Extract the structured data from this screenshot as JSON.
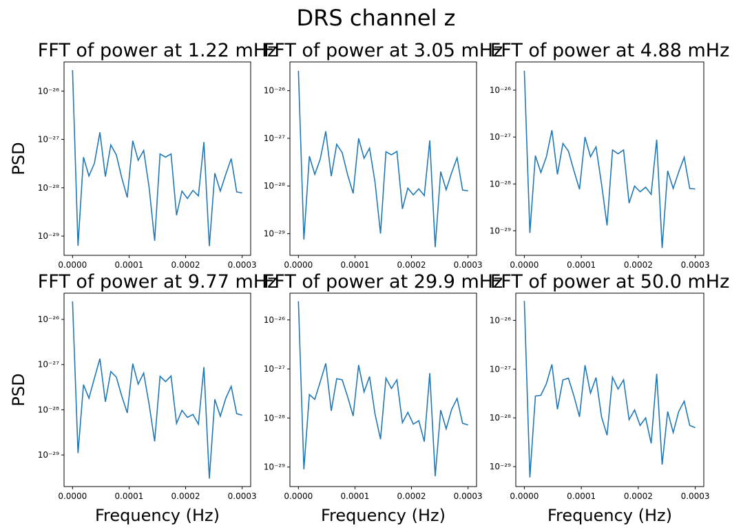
{
  "title": "DRS channel z",
  "chart_data": [
    {
      "type": "line",
      "title": "FFT of power at 1.22 mHz",
      "ylabel": "PSD",
      "color": "#1f77b4",
      "ylog": true,
      "x": [
        0,
        9.7e-06,
        1.94e-05,
        2.9e-05,
        3.87e-05,
        4.84e-05,
        5.81e-05,
        6.77e-05,
        7.74e-05,
        8.71e-05,
        9.68e-05,
        0.0001065,
        0.0001161,
        0.0001258,
        0.0001355,
        0.0001452,
        0.0001548,
        0.0001645,
        0.0001742,
        0.0001839,
        0.0001935,
        0.0002032,
        0.0002129,
        0.0002226,
        0.0002323,
        0.0002419,
        0.0002516,
        0.0002613,
        0.000271,
        0.0002806,
        0.0002903,
        0.0003
      ],
      "values": [
        2.7e-26,
        6.3e-30,
        4.3e-28,
        1.75e-28,
        3.2e-28,
        1.4e-27,
        1.7e-28,
        7.7e-28,
        4.8e-28,
        1.6e-28,
        6.3e-29,
        9.4e-28,
        3.7e-28,
        5.9e-28,
        1e-28,
        8e-30,
        5e-28,
        4.3e-28,
        5e-28,
        2.7e-29,
        8.5e-29,
        6e-29,
        8.8e-29,
        6.8e-29,
        8.8e-28,
        6.2e-30,
        2e-28,
        8.5e-29,
        1.9e-28,
        4e-28,
        8.2e-29,
        7.8e-29
      ],
      "xlim": [
        -1.5e-05,
        0.000315
      ],
      "ylim": [
        4e-30,
        4e-26
      ],
      "xticks": [
        {
          "value": 0,
          "label": "0.0000"
        },
        0.0001,
        0.0002,
        0.0003
      ],
      "yticks": [
        {
          "value": 1e-29,
          "label": "10⁻²⁹"
        },
        {
          "value": 1e-28,
          "label": "10⁻²⁸"
        },
        {
          "value": 1e-27,
          "label": "10⁻²⁷"
        },
        {
          "value": 1e-26,
          "label": "10⁻²⁶"
        }
      ]
    },
    {
      "type": "line",
      "title": "FFT of power at 3.05 mHz",
      "color": "#1f77b4",
      "ylog": true,
      "x": [
        0,
        9.7e-06,
        1.94e-05,
        2.9e-05,
        3.87e-05,
        4.84e-05,
        5.81e-05,
        6.77e-05,
        7.74e-05,
        8.71e-05,
        9.68e-05,
        0.0001065,
        0.0001161,
        0.0001258,
        0.0001355,
        0.0001452,
        0.0001548,
        0.0001645,
        0.0001742,
        0.0001839,
        0.0001935,
        0.0002032,
        0.0002129,
        0.0002226,
        0.0002323,
        0.0002419,
        0.0002516,
        0.0002613,
        0.000271,
        0.0002806,
        0.0002903,
        0.0003
      ],
      "values": [
        2.6e-26,
        7.5e-30,
        4.2e-28,
        1.75e-28,
        3.7e-28,
        1.4e-27,
        1.6e-28,
        7.5e-28,
        5e-28,
        1.7e-28,
        7e-29,
        1e-27,
        3.8e-28,
        6.2e-28,
        1.2e-28,
        1e-29,
        5.2e-28,
        4.5e-28,
        5.3e-28,
        3.3e-29,
        9e-29,
        6.5e-29,
        8.7e-29,
        6.3e-29,
        9e-28,
        5.2e-30,
        2e-28,
        8.3e-29,
        1.9e-28,
        3.9e-28,
        8.2e-29,
        7.9e-29
      ],
      "xlim": [
        -1.5e-05,
        0.000315
      ],
      "ylim": [
        3.5e-30,
        4e-26
      ],
      "xticks": [
        {
          "value": 0,
          "label": "0.0000"
        },
        0.0001,
        0.0002,
        0.0003
      ],
      "yticks": [
        {
          "value": 1e-29,
          "label": "10⁻²⁹"
        },
        {
          "value": 1e-28,
          "label": "10⁻²⁸"
        },
        {
          "value": 1e-27,
          "label": "10⁻²⁷"
        },
        {
          "value": 1e-26,
          "label": "10⁻²⁶"
        }
      ]
    },
    {
      "type": "line",
      "title": "FFT of power at 4.88 mHz",
      "color": "#1f77b4",
      "ylog": true,
      "x": [
        0,
        9.7e-06,
        1.94e-05,
        2.9e-05,
        3.87e-05,
        4.84e-05,
        5.81e-05,
        6.77e-05,
        7.74e-05,
        8.71e-05,
        9.68e-05,
        0.0001065,
        0.0001161,
        0.0001258,
        0.0001355,
        0.0001452,
        0.0001548,
        0.0001645,
        0.0001742,
        0.0001839,
        0.0001935,
        0.0002032,
        0.0002129,
        0.0002226,
        0.0002323,
        0.0002419,
        0.0002516,
        0.0002613,
        0.000271,
        0.0002806,
        0.0002903,
        0.0003
      ],
      "values": [
        2.6e-26,
        9e-30,
        4e-28,
        1.75e-28,
        3.8e-28,
        1.4e-27,
        1.6e-28,
        7.3e-28,
        5e-28,
        1.9e-28,
        7.7e-29,
        1e-27,
        3.8e-28,
        6.2e-28,
        1e-28,
        1.3e-29,
        5.3e-28,
        4.4e-28,
        5.3e-28,
        3.9e-29,
        9e-29,
        6.8e-29,
        8.5e-29,
        6e-29,
        8.8e-28,
        4.3e-30,
        1.9e-28,
        8e-29,
        1.8e-28,
        3.7e-28,
        8e-29,
        7.8e-29
      ],
      "xlim": [
        -1.5e-05,
        0.000315
      ],
      "ylim": [
        3e-30,
        4e-26
      ],
      "xticks": [
        {
          "value": 0,
          "label": "0.0000"
        },
        0.0001,
        0.0002,
        0.0003
      ],
      "yticks": [
        {
          "value": 1e-29,
          "label": "10⁻²⁹"
        },
        {
          "value": 1e-28,
          "label": "10⁻²⁸"
        },
        {
          "value": 1e-27,
          "label": "10⁻²⁷"
        },
        {
          "value": 1e-26,
          "label": "10⁻²⁶"
        }
      ]
    },
    {
      "type": "line",
      "title": "FFT of power at 9.77 mHz",
      "ylabel": "PSD",
      "xlabel": "Frequency (Hz)",
      "color": "#1f77b4",
      "ylog": true,
      "x": [
        0,
        9.7e-06,
        1.94e-05,
        2.9e-05,
        3.87e-05,
        4.84e-05,
        5.81e-05,
        6.77e-05,
        7.74e-05,
        8.71e-05,
        9.68e-05,
        0.0001065,
        0.0001161,
        0.0001258,
        0.0001355,
        0.0001452,
        0.0001548,
        0.0001645,
        0.0001742,
        0.0001839,
        0.0001935,
        0.0002032,
        0.0002129,
        0.0002226,
        0.0002323,
        0.0002419,
        0.0002516,
        0.0002613,
        0.000271,
        0.0002806,
        0.0002903,
        0.0003
      ],
      "values": [
        2.5e-26,
        1.1e-29,
        3.6e-28,
        1.8e-28,
        5e-28,
        1.35e-27,
        1.5e-28,
        7e-28,
        5.3e-28,
        2e-28,
        8.5e-29,
        1.05e-27,
        3.7e-28,
        6.5e-28,
        1.3e-28,
        2e-29,
        5.5e-28,
        4.2e-28,
        5.6e-28,
        5e-29,
        9.7e-29,
        6.8e-29,
        7.9e-29,
        4.8e-29,
        8.8e-28,
        3e-30,
        1.7e-28,
        7.2e-29,
        1.8e-28,
        3.3e-28,
        8.2e-29,
        7.6e-29
      ],
      "xlim": [
        -1.5e-05,
        0.000315
      ],
      "ylim": [
        2e-30,
        3.8e-26
      ],
      "xticks": [
        {
          "value": 0,
          "label": "0.0000"
        },
        0.0001,
        0.0002,
        0.0003
      ],
      "yticks": [
        {
          "value": 1e-29,
          "label": "10⁻²⁹"
        },
        {
          "value": 1e-28,
          "label": "10⁻²⁸"
        },
        {
          "value": 1e-27,
          "label": "10⁻²⁷"
        },
        {
          "value": 1e-26,
          "label": "10⁻²⁶"
        }
      ]
    },
    {
      "type": "line",
      "title": "FFT of power at 29.9 mHz",
      "xlabel": "Frequency (Hz)",
      "color": "#1f77b4",
      "ylog": true,
      "x": [
        0,
        9.7e-06,
        1.94e-05,
        2.9e-05,
        3.87e-05,
        4.84e-05,
        5.81e-05,
        6.77e-05,
        7.74e-05,
        8.71e-05,
        9.68e-05,
        0.0001065,
        0.0001161,
        0.0001258,
        0.0001355,
        0.0001452,
        0.0001548,
        0.0001645,
        0.0001742,
        0.0001839,
        0.0001935,
        0.0002032,
        0.0002129,
        0.0002226,
        0.0002323,
        0.0002419,
        0.0002516,
        0.0002613,
        0.000271,
        0.0002806,
        0.0002903,
        0.0003
      ],
      "values": [
        2.4e-26,
        9e-30,
        3e-28,
        2.4e-28,
        5.5e-28,
        1.3e-27,
        1.4e-28,
        6.3e-28,
        6e-28,
        2.7e-28,
        1.1e-28,
        1.2e-27,
        3.4e-28,
        7e-28,
        1.2e-28,
        3.7e-29,
        6.5e-28,
        4e-28,
        6e-28,
        8e-29,
        1.3e-28,
        7.5e-29,
        8.8e-29,
        3.3e-29,
        8.2e-28,
        6.5e-30,
        1.45e-28,
        6e-29,
        1.5e-28,
        2.5e-28,
        7.8e-29,
        7.2e-29
      ],
      "xlim": [
        -1.5e-05,
        0.000315
      ],
      "ylim": [
        4e-30,
        3.5e-26
      ],
      "xticks": [
        {
          "value": 0,
          "label": "0.0000"
        },
        0.0001,
        0.0002,
        0.0003
      ],
      "yticks": [
        {
          "value": 1e-29,
          "label": "10⁻²⁹"
        },
        {
          "value": 1e-28,
          "label": "10⁻²⁸"
        },
        {
          "value": 1e-27,
          "label": "10⁻²⁷"
        },
        {
          "value": 1e-26,
          "label": "10⁻²⁶"
        }
      ]
    },
    {
      "type": "line",
      "title": "FFT of power at 50.0 mHz",
      "xlabel": "Frequency (Hz)",
      "color": "#1f77b4",
      "ylog": true,
      "x": [
        0,
        9.7e-06,
        1.94e-05,
        2.9e-05,
        3.87e-05,
        4.84e-05,
        5.81e-05,
        6.77e-05,
        7.74e-05,
        8.71e-05,
        9.68e-05,
        0.0001065,
        0.0001161,
        0.0001258,
        0.0001355,
        0.0001452,
        0.0001548,
        0.0001645,
        0.0001742,
        0.0001839,
        0.0001935,
        0.0002032,
        0.0002129,
        0.0002226,
        0.0002323,
        0.0002419,
        0.0002516,
        0.0002613,
        0.000271,
        0.0002806,
        0.0002903,
        0.0003
      ],
      "values": [
        2.5e-26,
        6e-30,
        2.8e-28,
        2.9e-28,
        5e-28,
        1.25e-27,
        1.5e-28,
        6e-28,
        6.5e-28,
        2.8e-28,
        1.05e-28,
        1.2e-27,
        3.2e-28,
        6.7e-28,
        1.05e-28,
        4.4e-29,
        6.8e-28,
        3.9e-28,
        6e-28,
        9.2e-29,
        1.45e-28,
        7e-29,
        1e-28,
        3e-29,
        8e-28,
        1.1e-29,
        1.35e-28,
        5e-29,
        1.35e-28,
        2.2e-28,
        7e-29,
        6.3e-29
      ],
      "xlim": [
        -1.5e-05,
        0.000315
      ],
      "ylim": [
        3.9e-30,
        3.6e-26
      ],
      "xticks": [
        {
          "value": 0,
          "label": "0.0000"
        },
        0.0001,
        0.0002,
        0.0003
      ],
      "yticks": [
        {
          "value": 1e-29,
          "label": "10⁻²⁹"
        },
        {
          "value": 1e-28,
          "label": "10⁻²⁸"
        },
        {
          "value": 1e-27,
          "label": "10⁻²⁷"
        },
        {
          "value": 1e-26,
          "label": "10⁻²⁶"
        }
      ]
    }
  ]
}
